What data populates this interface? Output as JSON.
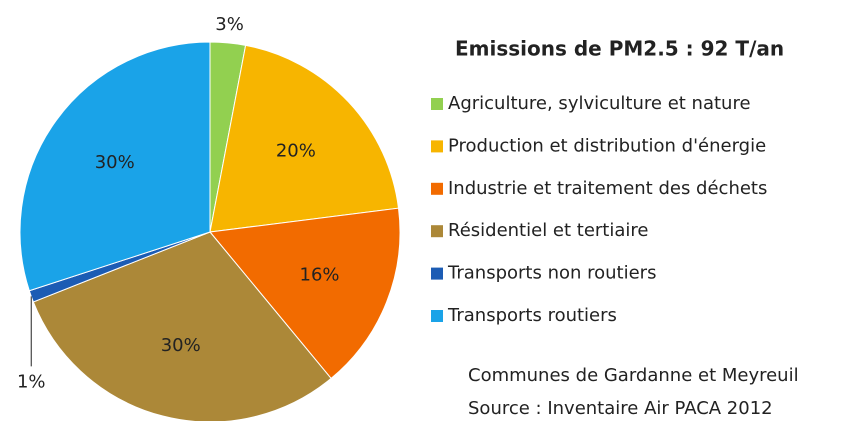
{
  "chart_data": {
    "type": "pie",
    "title": "Emissions de  PM2.5 : 92 T/an",
    "categories": [
      "Agriculture, sylviculture et nature",
      "Production et distribution d'énergie",
      "Industrie et traitement des déchets",
      "Résidentiel et tertiaire",
      "Transports non routiers",
      "Transports routiers"
    ],
    "values": [
      3,
      20,
      16,
      30,
      1,
      30
    ],
    "value_labels": [
      "3%",
      "20%",
      "16%",
      "30%",
      "1%",
      "30%"
    ],
    "colors": [
      "#92d050",
      "#f7b500",
      "#f26b00",
      "#ac8838",
      "#1c5cb4",
      "#1aa3e8"
    ],
    "notes": [
      "Communes de Gardanne et Meyreuil",
      "Source : Inventaire Air PACA 2012"
    ],
    "legend": "right"
  }
}
